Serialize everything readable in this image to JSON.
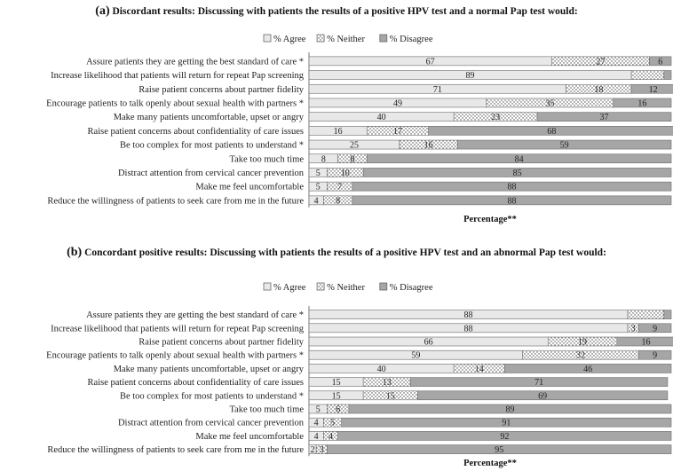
{
  "colors": {
    "agree": "#e8e8e8",
    "neither": "#ffffff",
    "disagree": "#a6a6a6",
    "stroke": "#6a6a6a"
  },
  "chart_data": [
    {
      "type": "bar",
      "orientation": "horizontal",
      "stacked": true,
      "panel_label": "(a)",
      "title": "Discordant results:  Discussing with patients the results of a positive HPV test and a normal Pap test would:",
      "xlabel": "Percentage**",
      "legend": {
        "position": "top",
        "entries": [
          "% Agree",
          "% Neither",
          "% Disagree"
        ]
      },
      "categories": [
        "Assure patients they are getting the best standard of care *",
        "Increase likelihood that patients will return for repeat Pap screening",
        "Raise patient concerns about partner fidelity",
        "Encourage patients to talk openly about sexual health with partners *",
        "Make many patients uncomfortable, upset or angry",
        "Raise patient concerns about confidentiality of care issues",
        "Be too complex for most patients to understand *",
        "Take too much time",
        "Distract attention from cervical cancer prevention",
        "Make me feel uncomfortable",
        "Reduce the willingness of patients to seek care from me in the future"
      ],
      "series": [
        {
          "name": "% Agree",
          "values": [
            67,
            89,
            71,
            49,
            40,
            16,
            25,
            8,
            5,
            5,
            4
          ]
        },
        {
          "name": "% Neither",
          "values": [
            27,
            9,
            18,
            35,
            23,
            17,
            16,
            8,
            10,
            7,
            8
          ]
        },
        {
          "name": "% Disagree",
          "values": [
            6,
            2,
            12,
            16,
            37,
            68,
            59,
            84,
            85,
            88,
            88
          ]
        }
      ],
      "labels": {
        "% Agree": [
          "67",
          "89",
          "71",
          "49",
          "40",
          "16",
          "25",
          "8",
          "5",
          "5",
          "4"
        ],
        "% Neither": [
          "27",
          "",
          "18",
          "35",
          "23",
          "17",
          "16",
          "8",
          "10",
          "7",
          "8"
        ],
        "% Disagree": [
          "6",
          "",
          "12",
          "16",
          "37",
          "68",
          "59",
          "84",
          "85",
          "88",
          "88"
        ]
      },
      "xlim": [
        0,
        100
      ]
    },
    {
      "type": "bar",
      "orientation": "horizontal",
      "stacked": true,
      "panel_label": "(b)",
      "title": "Concordant positive results: Discussing with patients the results of a positive HPV test and an abnormal Pap test would:",
      "xlabel": "Percentage**",
      "legend": {
        "position": "top",
        "entries": [
          "% Agree",
          "% Neither",
          "% Disagree"
        ]
      },
      "categories": [
        "Assure patients they are getting the best standard of care *",
        "Increase likelihood that patients will return for repeat Pap screening",
        "Raise patient concerns about partner fidelity",
        "Encourage patients to talk openly about sexual health with partners *",
        "Make many patients uncomfortable, upset or angry",
        "Raise patient concerns about confidentiality of care issues",
        "Be too complex for most patients to understand *",
        "Take too much time",
        "Distract attention from cervical cancer prevention",
        "Make me feel uncomfortable",
        "Reduce the willingness of patients to seek care from me in the future"
      ],
      "series": [
        {
          "name": "% Agree",
          "values": [
            88,
            88,
            66,
            59,
            40,
            15,
            15,
            5,
            4,
            4,
            2
          ]
        },
        {
          "name": "% Neither",
          "values": [
            10,
            3,
            19,
            32,
            14,
            13,
            15,
            6,
            5,
            4,
            3
          ]
        },
        {
          "name": "% Disagree",
          "values": [
            2,
            9,
            16,
            9,
            46,
            71,
            69,
            89,
            91,
            92,
            95
          ]
        }
      ],
      "labels": {
        "% Agree": [
          "88",
          "88",
          "66",
          "59",
          "40",
          "15",
          "15",
          "5",
          "4",
          "4",
          "2"
        ],
        "% Neither": [
          "",
          "3",
          "19",
          "32",
          "14",
          "13",
          "15",
          "6",
          "5",
          "4",
          "3"
        ],
        "% Disagree": [
          "",
          "9",
          "16",
          "9",
          "46",
          "71",
          "69",
          "89",
          "91",
          "92",
          "95"
        ]
      },
      "xlim": [
        0,
        100
      ]
    }
  ]
}
